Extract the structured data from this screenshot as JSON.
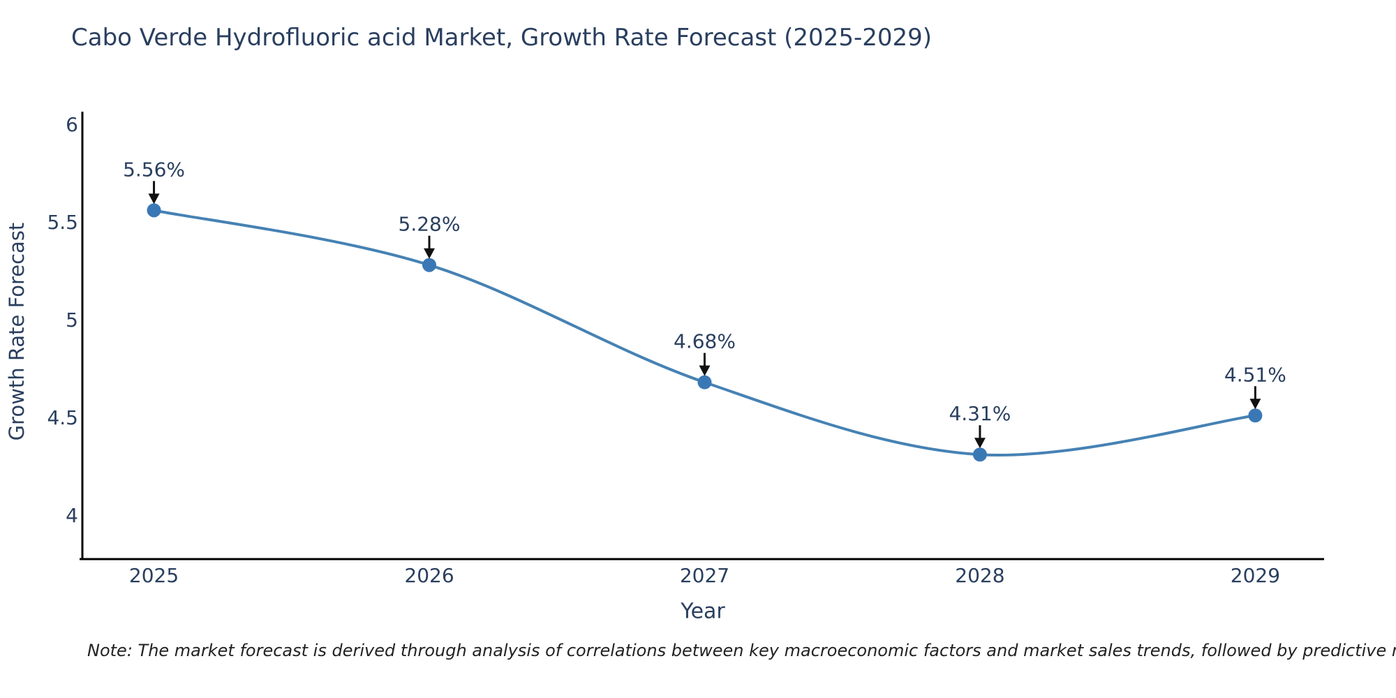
{
  "note": "Note: The market forecast is derived through analysis of correlations between key macroeconomic factors and market sales trends, followed by predictive modeling to project future sales",
  "chart_data": {
    "type": "line",
    "title": "Cabo Verde Hydrofluoric acid Market, Growth Rate Forecast (2025-2029)",
    "xlabel": "Year",
    "ylabel": "Growth Rate Forecast",
    "x": [
      2025,
      2026,
      2027,
      2028,
      2029
    ],
    "x_tick_labels": [
      "2025",
      "2026",
      "2027",
      "2028",
      "2029"
    ],
    "series": [
      {
        "name": "Growth Rate Forecast",
        "values": [
          5.56,
          5.28,
          4.68,
          4.31,
          4.51
        ]
      }
    ],
    "point_labels": [
      "5.56%",
      "5.28%",
      "4.68%",
      "4.31%",
      "4.51%"
    ],
    "y_ticks": [
      6,
      5.5,
      5,
      4.5,
      4
    ],
    "y_tick_labels": [
      "6",
      "5.5",
      "5",
      "4.5",
      "4"
    ],
    "ylim": [
      3.775,
      6.065
    ],
    "xlim": [
      2024.74,
      2029.25
    ],
    "grid": false,
    "legend": "none",
    "smooth": true,
    "colors": {
      "line": "#4682b4",
      "marker": "#3a78b5",
      "arrow": "#111111",
      "text": "#2a3f5f",
      "spine": "#000000"
    }
  }
}
